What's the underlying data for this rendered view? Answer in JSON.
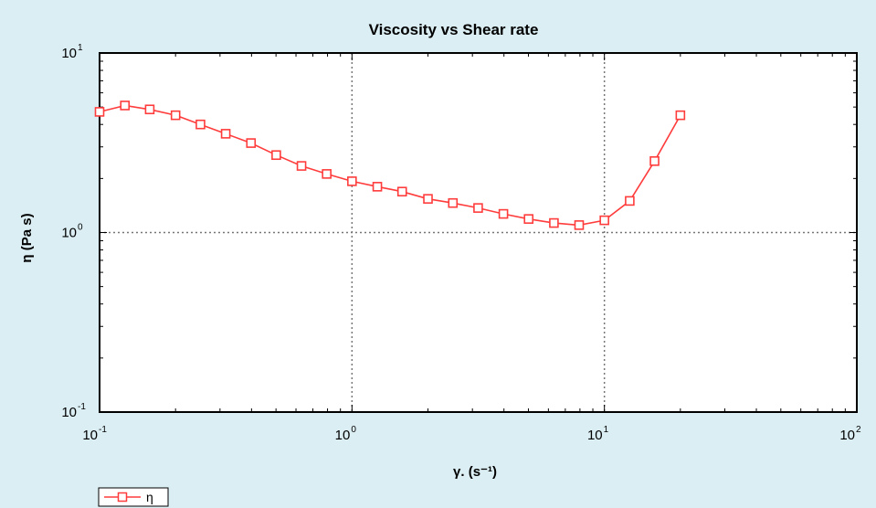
{
  "colors": {
    "background": "#dbeef3",
    "plot_area": "#ffffff",
    "series": "#ff3c3c",
    "grid": "#777777"
  },
  "chart_data": {
    "type": "line",
    "title": "Viscosity vs Shear rate",
    "xlabel": "γ. (s⁻¹)",
    "ylabel": "η (Pa s)",
    "xscale": "log",
    "yscale": "log",
    "xlim": [
      0.1,
      100
    ],
    "ylim": [
      0.1,
      10
    ],
    "x_ticks": [
      {
        "base": "10",
        "exp": "-1"
      },
      {
        "base": "10",
        "exp": "0"
      },
      {
        "base": "10",
        "exp": "1"
      },
      {
        "base": "10",
        "exp": "2"
      }
    ],
    "y_ticks": [
      {
        "base": "10",
        "exp": "-1"
      },
      {
        "base": "10",
        "exp": "0"
      },
      {
        "base": "10",
        "exp": "1"
      }
    ],
    "grid": "major, dotted",
    "legend_position": "bottom-left",
    "series": [
      {
        "name": "η",
        "marker": "open-square",
        "color": "#ff3c3c",
        "points": [
          [
            0.1,
            4.7
          ],
          [
            0.126,
            5.1
          ],
          [
            0.158,
            4.85
          ],
          [
            0.2,
            4.5
          ],
          [
            0.251,
            4.0
          ],
          [
            0.316,
            3.55
          ],
          [
            0.398,
            3.15
          ],
          [
            0.501,
            2.7
          ],
          [
            0.631,
            2.35
          ],
          [
            0.794,
            2.12
          ],
          [
            1.0,
            1.93
          ],
          [
            1.26,
            1.8
          ],
          [
            1.58,
            1.69
          ],
          [
            2.0,
            1.54
          ],
          [
            2.51,
            1.46
          ],
          [
            3.16,
            1.37
          ],
          [
            3.98,
            1.27
          ],
          [
            5.01,
            1.19
          ],
          [
            6.31,
            1.13
          ],
          [
            7.94,
            1.1
          ],
          [
            10.0,
            1.17
          ],
          [
            12.6,
            1.5
          ],
          [
            15.8,
            2.5
          ],
          [
            20.0,
            4.5
          ]
        ]
      }
    ]
  }
}
